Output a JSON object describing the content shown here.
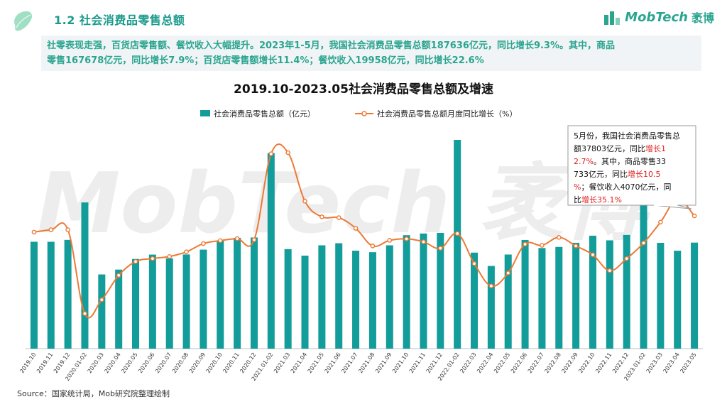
{
  "header": {
    "section_title": "1.2  社会消费品零售总额",
    "brand": "MobTech",
    "brand_suffix": "袤博"
  },
  "summary": {
    "line1": "社零表现走强，百货店零售额、餐饮收入大幅提升。2023年1-5月，我国社会消费品零售总额187636亿元，同比增长9.3%。其中，商品",
    "line2": "零售167678亿元，同比增长7.9%；百货店零售额增长11.4%；餐饮收入19958亿元，同比增长22.6%"
  },
  "watermark": "MobTech 袤博",
  "colors": {
    "bar": "#129c9a",
    "line": "#ec7a35",
    "accent": "#2aa58f",
    "red": "#e02020"
  },
  "chart_data": {
    "type": "bar",
    "title": "2019.10-2023.05社会消费品零售总额及增速",
    "categories": [
      "2019.10",
      "2019.11",
      "2019.12",
      "2020.01-02",
      "2020.03",
      "2020.04",
      "2020.05",
      "2020.06",
      "2020.07",
      "2020.08",
      "2020.09",
      "2020.10",
      "2020.11",
      "2020.12",
      "2021.01-02",
      "2021.03",
      "2021.04",
      "2021.05",
      "2021.06",
      "2021.07",
      "2021.08",
      "2021.09",
      "2021.10",
      "2021.11",
      "2021.12",
      "2022.01-02",
      "2022.03",
      "2022.04",
      "2022.05",
      "2022.06",
      "2022.07",
      "2022.08",
      "2022.09",
      "2022.10",
      "2022.11",
      "2022.12",
      "2023.01-02",
      "2023.03",
      "2023.04",
      "2023.05"
    ],
    "series": [
      {
        "name": "社会消费品零售总额（亿元）",
        "type": "bar",
        "values": [
          38104,
          38094,
          38777,
          52130,
          26450,
          28178,
          31973,
          33526,
          32203,
          33571,
          35295,
          38576,
          39514,
          39620,
          69737,
          35484,
          33153,
          36833,
          37586,
          34925,
          34395,
          36833,
          40454,
          41043,
          41269,
          74426,
          34233,
          29483,
          33547,
          38742,
          35870,
          36258,
          37745,
          40271,
          38615,
          40542,
          77067,
          37715,
          34910,
          37803
        ]
      },
      {
        "name": "社会消费品零售总额月度同比增长（%）",
        "type": "line",
        "values": [
          7.2,
          8.0,
          8.0,
          -20.5,
          -15.8,
          -7.5,
          -2.8,
          -1.8,
          -1.1,
          0.5,
          3.3,
          4.3,
          5.0,
          4.6,
          33.8,
          34.2,
          17.7,
          12.4,
          12.1,
          8.5,
          2.5,
          4.4,
          4.9,
          3.9,
          1.7,
          6.7,
          -3.5,
          -11.1,
          -6.7,
          3.1,
          2.7,
          5.4,
          2.5,
          -0.5,
          -5.9,
          -1.8,
          3.5,
          10.6,
          18.4,
          12.7
        ]
      }
    ],
    "annotation": {
      "parts": [
        {
          "text": "5月份，我国社会消费品零售总额37803亿元，同比",
          "red": false
        },
        {
          "text": "增长12.7%",
          "red": true
        },
        {
          "text": "。其中，商品零售33733亿元，同比",
          "red": false
        },
        {
          "text": "增长10.5%",
          "red": true
        },
        {
          "text": "；餐饮收入4070亿元，同比",
          "red": false
        },
        {
          "text": "增长35.1%",
          "red": true
        }
      ]
    },
    "ylim_bar": [
      0,
      80000
    ],
    "ylim_line": [
      -30,
      40
    ],
    "grid": false,
    "legend_position": "top-center"
  },
  "footer": {
    "source": "Source：国家统计局，Mob研究院整理绘制"
  }
}
